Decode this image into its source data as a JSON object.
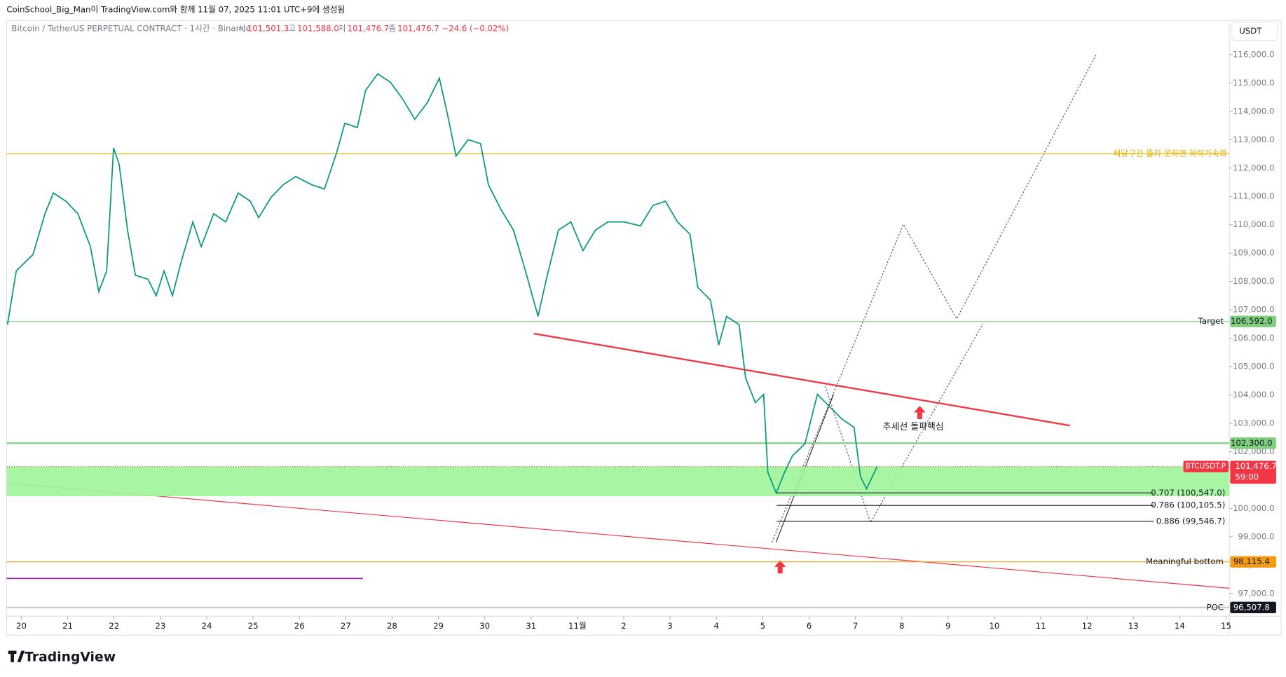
{
  "header": {
    "credit": "CoinSchool_Big_Man이 TradingView.com와 함께 11월 07, 2025 11:01 UTC+9에 생성됨",
    "symbol": "Bitcoin / TetherUS PERPETUAL CONTRACT · 1시간 · Binance",
    "ohlc": [
      {
        "label": "시",
        "value": "101,501.3"
      },
      {
        "label": "고",
        "value": "101,588.0"
      },
      {
        "label": "저",
        "value": "101,476.7"
      },
      {
        "label": "종",
        "value": "101,476.7"
      }
    ],
    "change": "−24.6 (−0.02%)",
    "currency": "USDT"
  },
  "logo": "TradingView",
  "chart_data": {
    "type": "line",
    "series": [
      {
        "name": "BTCUSDT.P",
        "color": "#089981",
        "x": [
          -0.3,
          -0.11,
          0.25,
          0.51,
          0.69,
          0.96,
          1.22,
          1.49,
          1.67,
          1.84,
          1.99,
          2.11,
          2.29,
          2.46,
          2.73,
          2.91,
          3.08,
          3.26,
          3.44,
          3.7,
          3.88,
          4.15,
          4.41,
          4.68,
          4.94,
          5.12,
          5.39,
          5.65,
          5.92,
          6.27,
          6.54,
          6.81,
          6.98,
          7.25,
          7.43,
          7.69,
          7.96,
          8.22,
          8.49,
          8.76,
          9.02,
          9.2,
          9.38,
          9.64,
          9.91,
          10.08,
          10.35,
          10.62,
          10.88,
          11.15,
          11.33,
          11.59,
          11.86,
          12.12,
          12.39,
          12.66,
          13.01,
          13.36,
          13.63,
          13.9,
          14.16,
          14.43,
          14.6,
          14.87,
          15.05,
          15.22,
          15.49,
          15.63,
          15.84,
          16.02,
          16.11,
          16.29,
          16.47,
          16.64,
          16.91,
          17.18,
          17.44,
          17.71,
          17.97,
          18.11,
          18.24,
          18.47
        ],
        "values": [
          106480,
          108370,
          108950,
          110390,
          111120,
          110830,
          110390,
          109230,
          107640,
          108370,
          112710,
          112130,
          109810,
          108220,
          108080,
          107500,
          108370,
          107500,
          108650,
          110100,
          109230,
          110390,
          110100,
          111120,
          110830,
          110250,
          110970,
          111410,
          111700,
          111410,
          111260,
          112570,
          113580,
          113430,
          114740,
          115320,
          115030,
          114450,
          113720,
          114300,
          115170,
          113870,
          112420,
          113000,
          112860,
          111410,
          110540,
          109810,
          108370,
          106770,
          108080,
          109810,
          110100,
          109090,
          109810,
          110100,
          110100,
          109960,
          110680,
          110830,
          110100,
          109670,
          107790,
          107350,
          105760,
          106770,
          106480,
          104600,
          103730,
          104020,
          101270,
          100545,
          101270,
          101850,
          102280,
          104020,
          103590,
          103150,
          102860,
          101120,
          100690,
          101476.7
        ]
      }
    ],
    "xlim": [
      -0.32,
      26.07
    ],
    "ylim": [
      96200,
      117200
    ],
    "xticks": [
      {
        "value": 0,
        "label": "20"
      },
      {
        "value": 1,
        "label": "21"
      },
      {
        "value": 2,
        "label": "22"
      },
      {
        "value": 3,
        "label": "23"
      },
      {
        "value": 4,
        "label": "24"
      },
      {
        "value": 5,
        "label": "25"
      },
      {
        "value": 6,
        "label": "26"
      },
      {
        "value": 7,
        "label": "27"
      },
      {
        "value": 8,
        "label": "28"
      },
      {
        "value": 9,
        "label": "29"
      },
      {
        "value": 10,
        "label": "30"
      },
      {
        "value": 11,
        "label": "31"
      },
      {
        "value": 12,
        "label": "11월"
      },
      {
        "value": 13,
        "label": "2"
      },
      {
        "value": 14,
        "label": "3"
      },
      {
        "value": 15,
        "label": "4"
      },
      {
        "value": 16,
        "label": "5"
      },
      {
        "value": 17,
        "label": "6"
      },
      {
        "value": 18,
        "label": "7"
      },
      {
        "value": 19,
        "label": "8"
      },
      {
        "value": 20,
        "label": "9"
      },
      {
        "value": 21,
        "label": "10"
      },
      {
        "value": 22,
        "label": "11"
      },
      {
        "value": 23,
        "label": "12"
      },
      {
        "value": 24,
        "label": "13"
      },
      {
        "value": 25,
        "label": "14"
      },
      {
        "value": 26,
        "label": "15"
      }
    ],
    "yticks": [
      {
        "value": 97000,
        "label": "97,000.0"
      },
      {
        "value": 98000,
        "label": "98,000.0"
      },
      {
        "value": 99000,
        "label": "99,000.0"
      },
      {
        "value": 100000,
        "label": "100,000.0"
      },
      {
        "value": 101000,
        "label": "101,000.0"
      },
      {
        "value": 102000,
        "label": "102,000.0"
      },
      {
        "value": 103000,
        "label": "103,000.0"
      },
      {
        "value": 104000,
        "label": "104,000.0"
      },
      {
        "value": 105000,
        "label": "105,000.0"
      },
      {
        "value": 106000,
        "label": "106,000.0"
      },
      {
        "value": 107000,
        "label": "107,000.0"
      },
      {
        "value": 108000,
        "label": "108,000.0"
      },
      {
        "value": 109000,
        "label": "109,000.0"
      },
      {
        "value": 110000,
        "label": "110,000.0"
      },
      {
        "value": 111000,
        "label": "111,000.0"
      },
      {
        "value": 112000,
        "label": "112,000.0"
      },
      {
        "value": 113000,
        "label": "113,000.0"
      },
      {
        "value": 114000,
        "label": "114,000.0"
      },
      {
        "value": 115000,
        "label": "115,000.0"
      },
      {
        "value": 116000,
        "label": "116,000.0"
      }
    ],
    "levels": [
      {
        "value": 112500,
        "text": "해당구간 뚫지 못하면 하락가속화",
        "color": "#e8b100"
      },
      {
        "value": 106592,
        "text": "Target",
        "price_label": "106,592.0",
        "color": "#7fcf7f"
      },
      {
        "value": 102300,
        "price_label": "102,300.0",
        "color": "#7fcf7f"
      },
      {
        "value": 98115.4,
        "text": "Meaningful bottom",
        "price_label": "98,115.4",
        "color": "#f39c12"
      },
      {
        "value": 96507.8,
        "text": "POC",
        "price_label": "96,507.8",
        "color": "#cccccc"
      }
    ],
    "zone": {
      "range": [
        100430,
        101476.7
      ],
      "color": "#9ef59a"
    },
    "fib_levels": [
      {
        "value": 100547,
        "label": "0.707 (100,547.0)"
      },
      {
        "value": 100105.5,
        "label": "0.786 (100,105.5)"
      },
      {
        "value": 99546.7,
        "label": "0.886 (99,546.7)"
      }
    ],
    "fib_start": 16.3,
    "last_price": {
      "value": 101476.7,
      "label": "101,476.7",
      "symbol": "BTCUSDT.P",
      "countdown": "59:00",
      "color": "#f23645"
    },
    "annotation": "추세선 돌파핵심"
  }
}
